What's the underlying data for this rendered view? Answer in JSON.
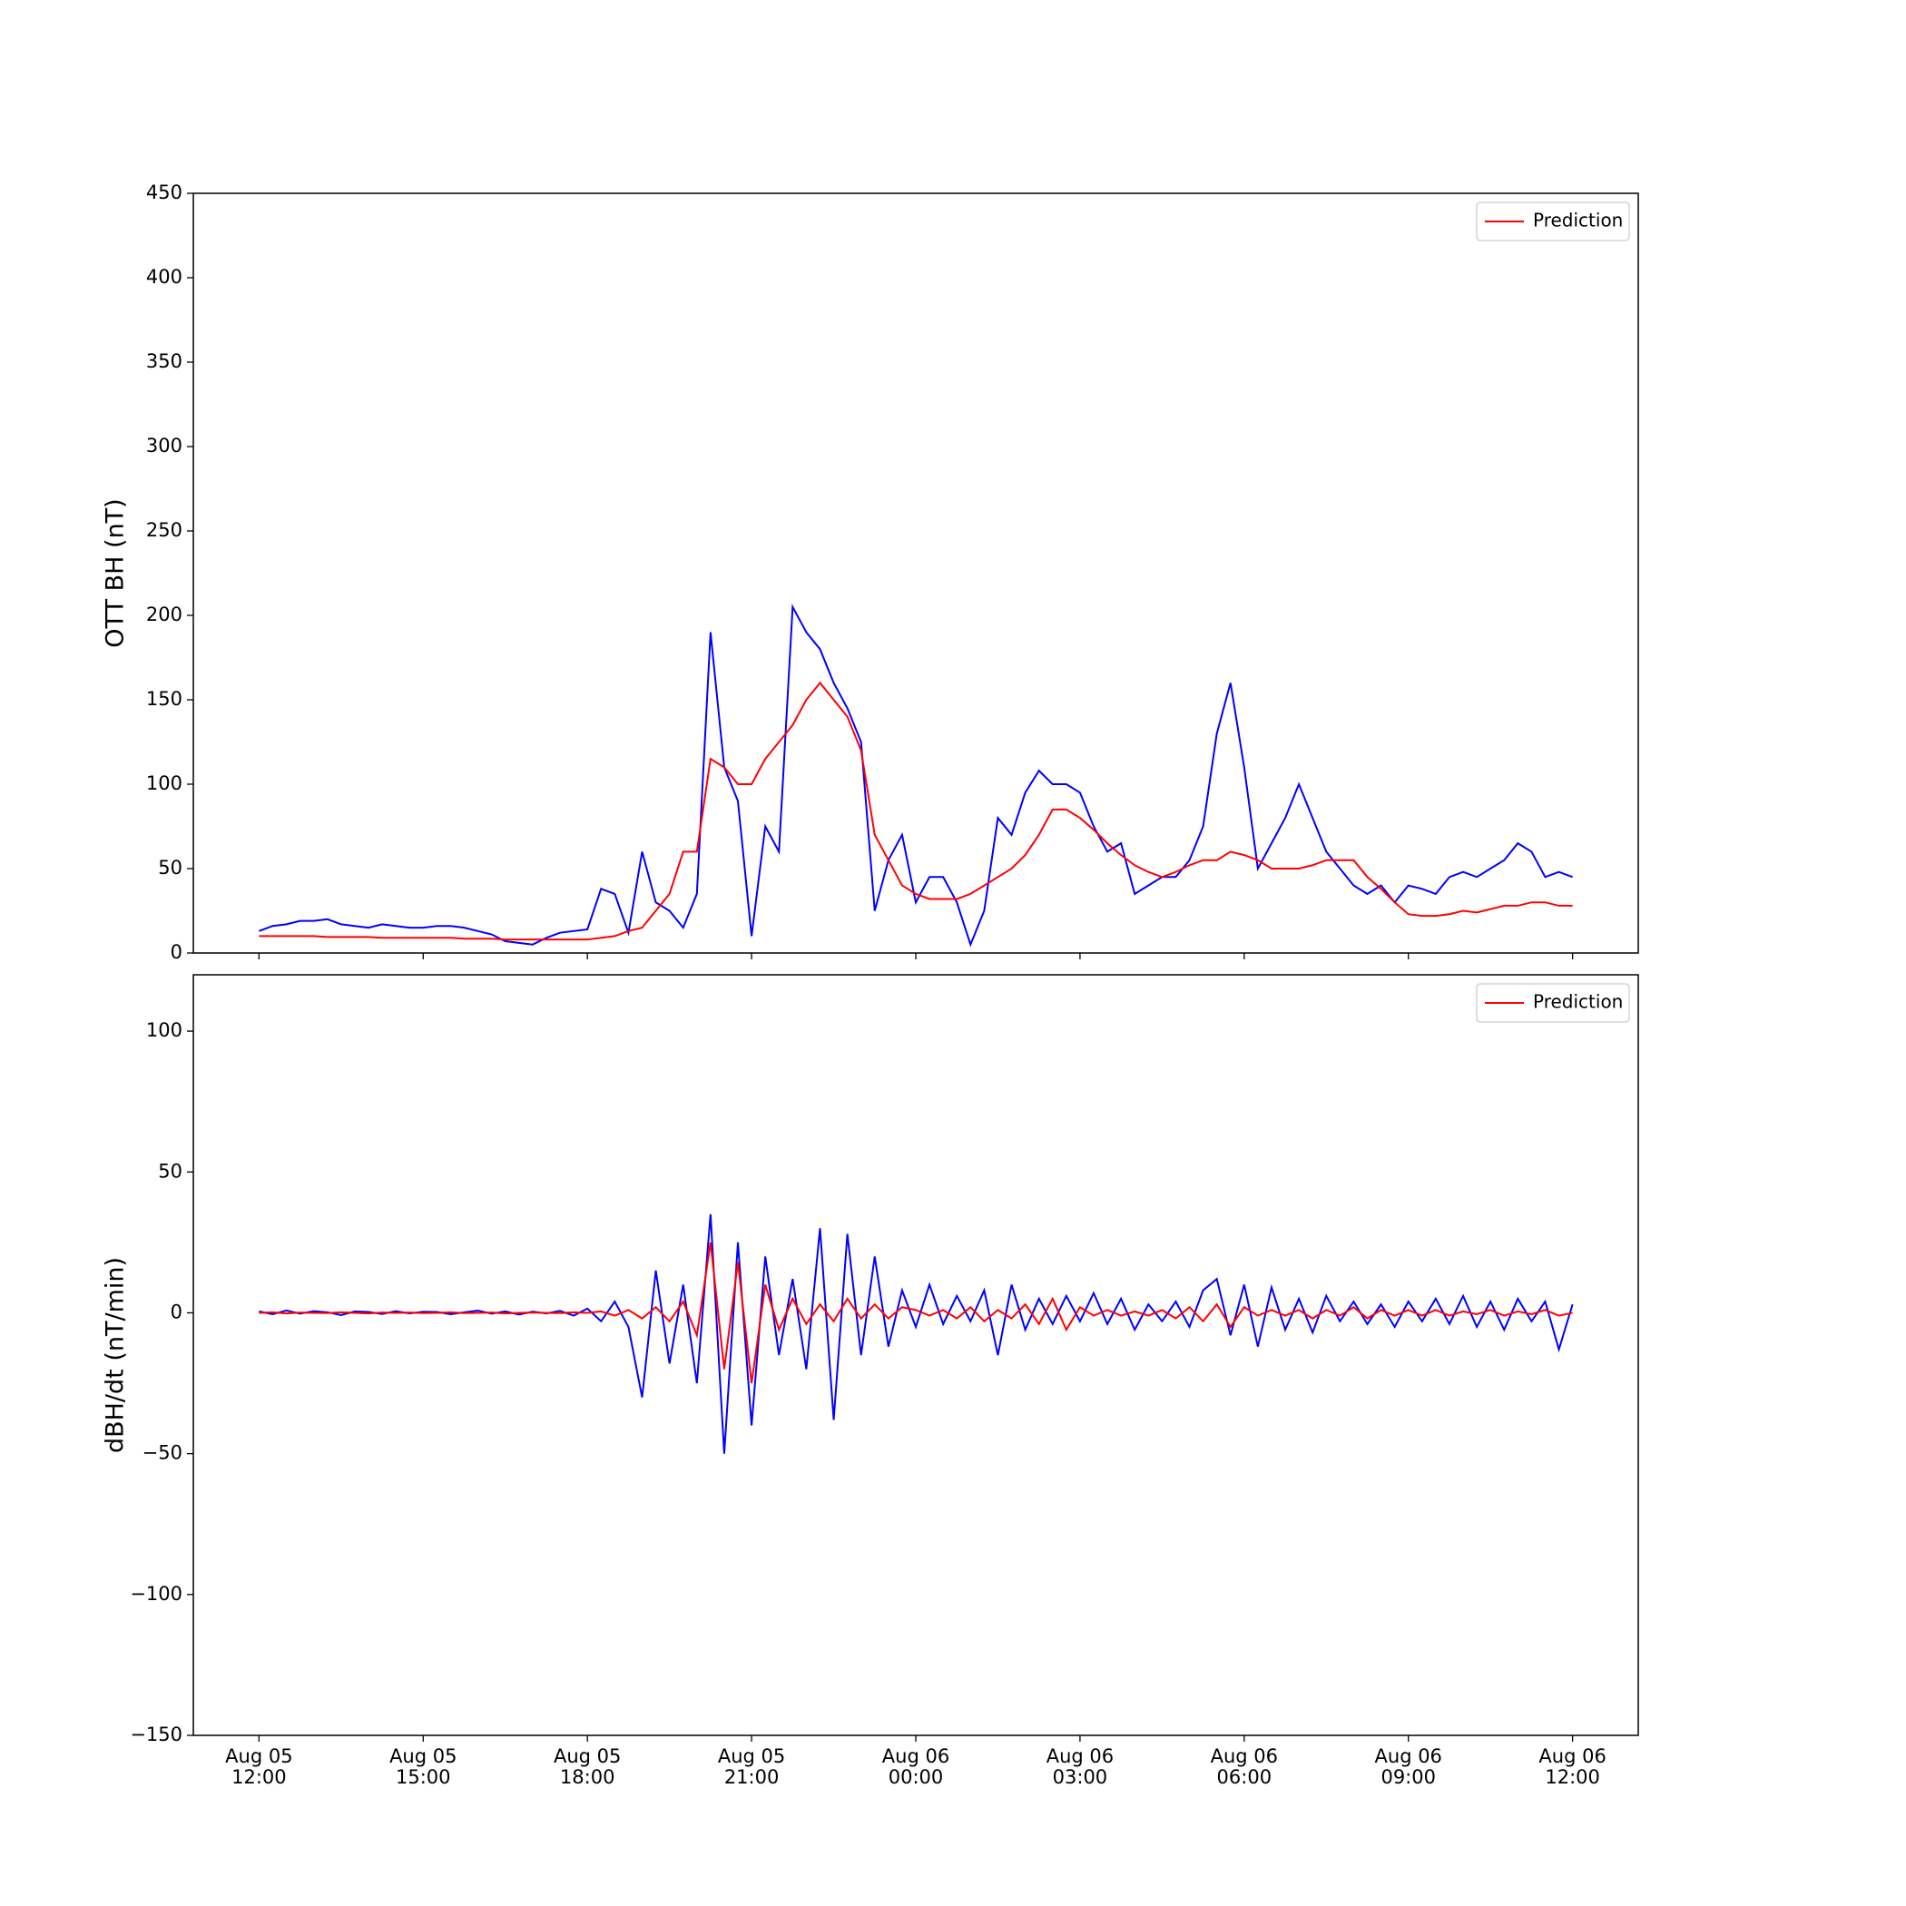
{
  "chart_data": [
    {
      "type": "line",
      "ylabel": "OTT BH (nT)",
      "legend": "upper right",
      "grid": false,
      "x": [
        "Aug 05 12:00",
        "Aug 05 12:15",
        "Aug 05 12:30",
        "Aug 05 12:45",
        "Aug 05 13:00",
        "Aug 05 13:15",
        "Aug 05 13:30",
        "Aug 05 13:45",
        "Aug 05 14:00",
        "Aug 05 14:15",
        "Aug 05 14:30",
        "Aug 05 14:45",
        "Aug 05 15:00",
        "Aug 05 15:15",
        "Aug 05 15:30",
        "Aug 05 15:45",
        "Aug 05 16:00",
        "Aug 05 16:15",
        "Aug 05 16:30",
        "Aug 05 16:45",
        "Aug 05 17:00",
        "Aug 05 17:15",
        "Aug 05 17:30",
        "Aug 05 17:45",
        "Aug 05 18:00",
        "Aug 05 18:15",
        "Aug 05 18:30",
        "Aug 05 18:45",
        "Aug 05 19:00",
        "Aug 05 19:15",
        "Aug 05 19:30",
        "Aug 05 19:45",
        "Aug 05 20:00",
        "Aug 05 20:15",
        "Aug 05 20:30",
        "Aug 05 20:45",
        "Aug 05 21:00",
        "Aug 05 21:15",
        "Aug 05 21:30",
        "Aug 05 21:45",
        "Aug 05 22:00",
        "Aug 05 22:15",
        "Aug 05 22:30",
        "Aug 05 22:45",
        "Aug 05 23:00",
        "Aug 05 23:15",
        "Aug 05 23:30",
        "Aug 05 23:45",
        "Aug 06 00:00",
        "Aug 06 00:15",
        "Aug 06 00:30",
        "Aug 06 00:45",
        "Aug 06 01:00",
        "Aug 06 01:15",
        "Aug 06 01:30",
        "Aug 06 01:45",
        "Aug 06 02:00",
        "Aug 06 02:15",
        "Aug 06 02:30",
        "Aug 06 02:45",
        "Aug 06 03:00",
        "Aug 06 03:15",
        "Aug 06 03:30",
        "Aug 06 03:45",
        "Aug 06 04:00",
        "Aug 06 04:15",
        "Aug 06 04:30",
        "Aug 06 04:45",
        "Aug 06 05:00",
        "Aug 06 05:15",
        "Aug 06 05:30",
        "Aug 06 05:45",
        "Aug 06 06:00",
        "Aug 06 06:15",
        "Aug 06 06:30",
        "Aug 06 06:45",
        "Aug 06 07:00",
        "Aug 06 07:15",
        "Aug 06 07:30",
        "Aug 06 07:45",
        "Aug 06 08:00",
        "Aug 06 08:15",
        "Aug 06 08:30",
        "Aug 06 08:45",
        "Aug 06 09:00",
        "Aug 06 09:15",
        "Aug 06 09:30",
        "Aug 06 09:45",
        "Aug 06 10:00",
        "Aug 06 10:15",
        "Aug 06 10:30",
        "Aug 06 10:45",
        "Aug 06 11:00",
        "Aug 06 11:15",
        "Aug 06 11:30",
        "Aug 06 11:45",
        "Aug 06 12:00"
      ],
      "series": [
        {
          "color": "#0000ff",
          "values": [
            13,
            16,
            17,
            19,
            19,
            20,
            17,
            16,
            15,
            17,
            16,
            15,
            15,
            16,
            16,
            15,
            13,
            11,
            7,
            6,
            5,
            9,
            12,
            13,
            14,
            38,
            35,
            12,
            60,
            30,
            25,
            15,
            35,
            190,
            110,
            90,
            10,
            75,
            60,
            205,
            190,
            180,
            160,
            145,
            125,
            25,
            55,
            70,
            30,
            45,
            45,
            30,
            5,
            25,
            80,
            70,
            95,
            108,
            100,
            100,
            95,
            75,
            60,
            65,
            35,
            40,
            45,
            45,
            55,
            75,
            130,
            160,
            110,
            50,
            65,
            80,
            100,
            80,
            60,
            50,
            40,
            35,
            40,
            30,
            40,
            38,
            35,
            45,
            48,
            45,
            50,
            55,
            65,
            60,
            45,
            48,
            45
          ]
        },
        {
          "name": "Prediction",
          "color": "#ff0000",
          "values": [
            10,
            10,
            10,
            10,
            10,
            9.5,
            9.5,
            9.5,
            9.5,
            9,
            9,
            9,
            9,
            9,
            9,
            8.5,
            8.5,
            8.5,
            8,
            8,
            8,
            8,
            8,
            8,
            8,
            9,
            10,
            13,
            15,
            25,
            35,
            60,
            60,
            115,
            110,
            100,
            100,
            115,
            125,
            135,
            150,
            160,
            150,
            140,
            120,
            70,
            55,
            40,
            35,
            32,
            32,
            32,
            35,
            40,
            45,
            50,
            58,
            70,
            85,
            85,
            80,
            73,
            65,
            58,
            52,
            48,
            45,
            48,
            52,
            55,
            55,
            60,
            58,
            55,
            50,
            50,
            50,
            52,
            55,
            55,
            55,
            45,
            38,
            30,
            23,
            22,
            22,
            23,
            25,
            24,
            26,
            28,
            28,
            30,
            30,
            28,
            28
          ]
        }
      ],
      "xlim": [
        "Aug 05 10:48",
        "Aug 06 13:12"
      ],
      "xticks": [
        "Aug 05 12:00",
        "Aug 05 15:00",
        "Aug 05 18:00",
        "Aug 05 21:00",
        "Aug 06 00:00",
        "Aug 06 03:00",
        "Aug 06 06:00",
        "Aug 06 09:00",
        "Aug 06 12:00"
      ],
      "ylim": [
        0,
        450
      ],
      "yticks": [
        0,
        50,
        100,
        150,
        200,
        250,
        300,
        350,
        400,
        450
      ]
    },
    {
      "type": "line",
      "ylabel": "dBH/dt (nT/min)",
      "legend": "upper right",
      "grid": false,
      "x": [
        "Aug 05 12:00",
        "Aug 05 12:15",
        "Aug 05 12:30",
        "Aug 05 12:45",
        "Aug 05 13:00",
        "Aug 05 13:15",
        "Aug 05 13:30",
        "Aug 05 13:45",
        "Aug 05 14:00",
        "Aug 05 14:15",
        "Aug 05 14:30",
        "Aug 05 14:45",
        "Aug 05 15:00",
        "Aug 05 15:15",
        "Aug 05 15:30",
        "Aug 05 15:45",
        "Aug 05 16:00",
        "Aug 05 16:15",
        "Aug 05 16:30",
        "Aug 05 16:45",
        "Aug 05 17:00",
        "Aug 05 17:15",
        "Aug 05 17:30",
        "Aug 05 17:45",
        "Aug 05 18:00",
        "Aug 05 18:15",
        "Aug 05 18:30",
        "Aug 05 18:45",
        "Aug 05 19:00",
        "Aug 05 19:15",
        "Aug 05 19:30",
        "Aug 05 19:45",
        "Aug 05 20:00",
        "Aug 05 20:15",
        "Aug 05 20:30",
        "Aug 05 20:45",
        "Aug 05 21:00",
        "Aug 05 21:15",
        "Aug 05 21:30",
        "Aug 05 21:45",
        "Aug 05 22:00",
        "Aug 05 22:15",
        "Aug 05 22:30",
        "Aug 05 22:45",
        "Aug 05 23:00",
        "Aug 05 23:15",
        "Aug 05 23:30",
        "Aug 05 23:45",
        "Aug 06 00:00",
        "Aug 06 00:15",
        "Aug 06 00:30",
        "Aug 06 00:45",
        "Aug 06 01:00",
        "Aug 06 01:15",
        "Aug 06 01:30",
        "Aug 06 01:45",
        "Aug 06 02:00",
        "Aug 06 02:15",
        "Aug 06 02:30",
        "Aug 06 02:45",
        "Aug 06 03:00",
        "Aug 06 03:15",
        "Aug 06 03:30",
        "Aug 06 03:45",
        "Aug 06 04:00",
        "Aug 06 04:15",
        "Aug 06 04:30",
        "Aug 06 04:45",
        "Aug 06 05:00",
        "Aug 06 05:15",
        "Aug 06 05:30",
        "Aug 06 05:45",
        "Aug 06 06:00",
        "Aug 06 06:15",
        "Aug 06 06:30",
        "Aug 06 06:45",
        "Aug 06 07:00",
        "Aug 06 07:15",
        "Aug 06 07:30",
        "Aug 06 07:45",
        "Aug 06 08:00",
        "Aug 06 08:15",
        "Aug 06 08:30",
        "Aug 06 08:45",
        "Aug 06 09:00",
        "Aug 06 09:15",
        "Aug 06 09:30",
        "Aug 06 09:45",
        "Aug 06 10:00",
        "Aug 06 10:15",
        "Aug 06 10:30",
        "Aug 06 10:45",
        "Aug 06 11:00",
        "Aug 06 11:15",
        "Aug 06 11:30",
        "Aug 06 11:45",
        "Aug 06 12:00"
      ],
      "series": [
        {
          "color": "#0000ff",
          "values": [
            0.5,
            -0.5,
            0.8,
            -0.3,
            0.6,
            0.2,
            -0.8,
            0.5,
            0.3,
            -0.4,
            0.6,
            -0.2,
            0.4,
            0.3,
            -0.5,
            0.2,
            0.8,
            -0.3,
            0.5,
            -0.6,
            0.4,
            -0.2,
            0.7,
            -1,
            1.5,
            -3,
            4,
            -5,
            -30,
            15,
            -18,
            10,
            -25,
            35,
            -50,
            25,
            -40,
            20,
            -15,
            12,
            -20,
            30,
            -38,
            28,
            -15,
            20,
            -12,
            8,
            -5,
            10,
            -4,
            6,
            -3,
            8,
            -15,
            10,
            -6,
            5,
            -4,
            6,
            -3,
            7,
            -4,
            5,
            -6,
            3,
            -3,
            4,
            -5,
            8,
            12,
            -8,
            10,
            -12,
            9,
            -6,
            5,
            -7,
            6,
            -3,
            4,
            -4,
            3,
            -5,
            4,
            -3,
            5,
            -4,
            6,
            -5,
            4,
            -6,
            5,
            -3,
            4,
            -13,
            3
          ]
        },
        {
          "name": "Prediction",
          "color": "#ff0000",
          "values": [
            0,
            0.2,
            -0.2,
            0.1,
            0,
            -0.1,
            0.2,
            0,
            -0.2,
            0.1,
            0,
            0.1,
            -0.1,
            0,
            0.2,
            -0.1,
            0,
            0.1,
            -0.2,
            0,
            0.1,
            0,
            -0.1,
            0.2,
            0,
            0.5,
            -1,
            1,
            -2,
            2,
            -3,
            4,
            -8,
            25,
            -20,
            18,
            -25,
            10,
            -6,
            5,
            -4,
            3,
            -3,
            5,
            -2,
            3,
            -2,
            2,
            1,
            -1,
            1,
            -2,
            2,
            -3,
            1,
            -2,
            3,
            -4,
            5,
            -6,
            2,
            -1,
            1,
            -1,
            0.5,
            -1,
            1,
            -2,
            2,
            -3,
            3,
            -5,
            2,
            -1,
            1,
            -1,
            1,
            -2,
            1,
            -1,
            2,
            -2,
            1,
            -1,
            1,
            -1,
            1,
            -1,
            0.5,
            -0.5,
            1,
            -1,
            0.5,
            -0.5,
            1,
            -1,
            0
          ]
        }
      ],
      "xlim": [
        "Aug 05 10:48",
        "Aug 06 13:12"
      ],
      "xticks": [
        {
          "value": "Aug 05 12:00",
          "label": "Aug 05\n12:00"
        },
        {
          "value": "Aug 05 15:00",
          "label": "Aug 05\n15:00"
        },
        {
          "value": "Aug 05 18:00",
          "label": "Aug 05\n18:00"
        },
        {
          "value": "Aug 05 21:00",
          "label": "Aug 05\n21:00"
        },
        {
          "value": "Aug 06 00:00",
          "label": "Aug 06\n00:00"
        },
        {
          "value": "Aug 06 03:00",
          "label": "Aug 06\n03:00"
        },
        {
          "value": "Aug 06 06:00",
          "label": "Aug 06\n06:00"
        },
        {
          "value": "Aug 06 09:00",
          "label": "Aug 06\n09:00"
        },
        {
          "value": "Aug 06 12:00",
          "label": "Aug 06\n12:00"
        }
      ],
      "ylim": [
        -150,
        120
      ],
      "yticks": [
        {
          "value": -150,
          "label": "−150"
        },
        {
          "value": -100,
          "label": "−100"
        },
        {
          "value": -50,
          "label": "−50"
        },
        0,
        50,
        100
      ]
    }
  ]
}
